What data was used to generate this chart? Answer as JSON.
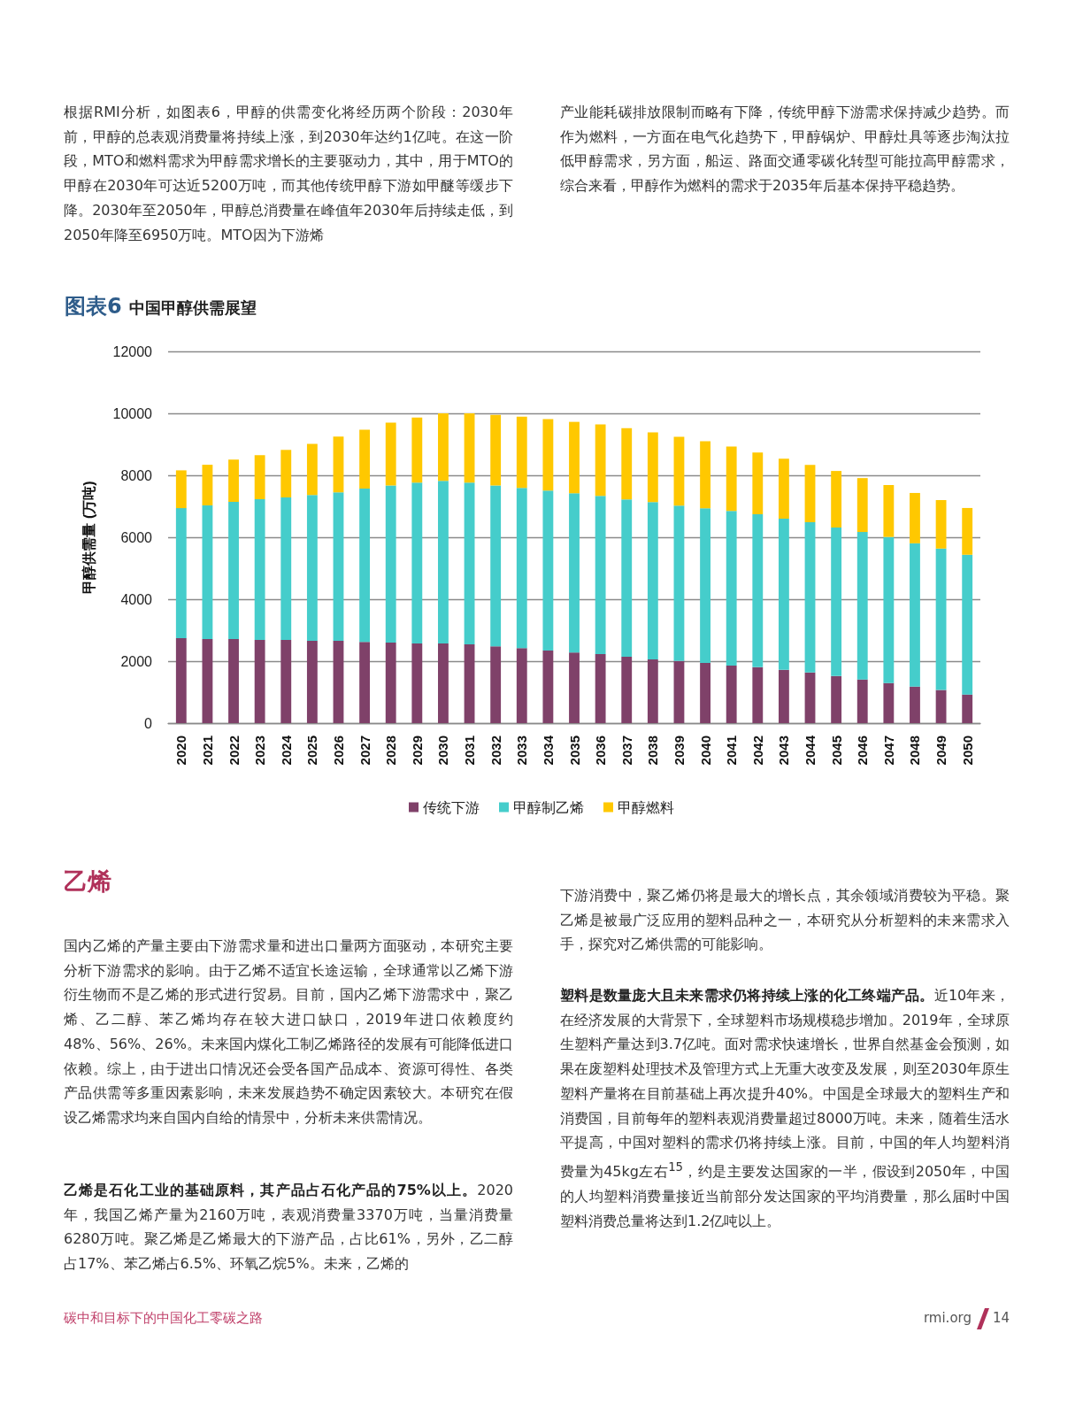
{
  "chart_data": {
    "type": "bar",
    "title": "图表6",
    "subtitle": "中国甲醇供需展望",
    "ylabel": "甲醇供需量 (万吨)",
    "categories": [
      "2020",
      "2021",
      "2022",
      "2023",
      "2024",
      "2025",
      "2026",
      "2027",
      "2028",
      "2029",
      "2030",
      "2031",
      "2032",
      "2033",
      "2034",
      "2035",
      "2036",
      "2037",
      "2038",
      "2039",
      "2040",
      "2041",
      "2042",
      "2043",
      "2044",
      "2045",
      "2046",
      "2047",
      "2048",
      "2049",
      "2050"
    ],
    "stacked": true,
    "ylim": [
      0,
      12000
    ],
    "yticks": [
      0,
      2000,
      4000,
      6000,
      8000,
      10000,
      12000
    ],
    "grid": "y",
    "legend": "bottom",
    "series": [
      {
        "name": "传统下游",
        "color": "#7f4169",
        "values": [
          2740,
          2715,
          2715,
          2685,
          2685,
          2655,
          2655,
          2625,
          2600,
          2570,
          2570,
          2540,
          2480,
          2420,
          2345,
          2280,
          2230,
          2145,
          2060,
          2005,
          1945,
          1860,
          1805,
          1720,
          1635,
          1520,
          1410,
          1295,
          1180,
          1070,
          925
        ]
      },
      {
        "name": "甲醇制乙烯",
        "color": "#45cdcb",
        "values": [
          4200,
          4315,
          4425,
          4545,
          4600,
          4710,
          4795,
          4945,
          5075,
          5195,
          5250,
          5225,
          5195,
          5170,
          5165,
          5140,
          5105,
          5075,
          5075,
          5015,
          4990,
          4990,
          4935,
          4880,
          4850,
          4795,
          4760,
          4715,
          4625,
          4565,
          4510
        ]
      },
      {
        "name": "甲醇燃料",
        "color": "#ffc800",
        "values": [
          1220,
          1310,
          1365,
          1420,
          1535,
          1650,
          1800,
          1900,
          2025,
          2100,
          2180,
          2235,
          2275,
          2300,
          2305,
          2305,
          2305,
          2305,
          2250,
          2225,
          2165,
          2080,
          1995,
          1935,
          1850,
          1825,
          1740,
          1675,
          1625,
          1565,
          1510
        ]
      }
    ],
    "annotations": [
      "根据RMI分析，如图表6，甲醇的供需变化将经历两个阶段：2030年前，甲醇的总表观消费量将持续上涨，到2030年达约1亿吨。在这一阶段，MTO和燃料需求为甲醇需求增长的主要驱动力，其中，用于MTO的甲醇在2030年可达近5200万吨，而其他传统甲醇下游如甲醚等缓步下降。2030年至2050年，甲醇总消费量在峰值年2030年后持续走低，到2050年降至6950万吨。MTO因为下游烯",
      "产业能耗碳排放限制而略有下降，传统甲醇下游需求保持减少趋势。而作为燃料，一方面在电气化趋势下，甲醇锅炉、甲醇灶具等逐步淘汰拉低甲醇需求，另方面，船运、路面交通零碳化转型可能拉高甲醇需求，综合来看，甲醇作为燃料的需求于2035年后基本保持平稳趋势。",
      "乙烯",
      "国内乙烯的产量主要由下游需求量和进出口量两方面驱动，本研究主要分析下游需求的影响。由于乙烯不适宜长途运输，全球通常以乙烯下游衍生物而不是乙烯的形式进行贸易。目前，国内乙烯下游需求中，聚乙烯、乙二醇、苯乙烯均存在较大进口缺口，2019年进口依赖度约48%、56%、26%。未来国内煤化工制乙烯路径的发展有可能降低进口依赖。综上，由于进出口情况还会受各国产品成本、资源可得性、各类产品供需等多重因素影响，未来发展趋势不确定因素较大。本研究在假设乙烯需求均来自国内自给的情景中，分析未来供需情况。",
      "乙烯是石化工业的基础原料，其产品占石化产品的75%以上。2020年，我国乙烯产量为2160万吨，表观消费量3370万吨，当量消费量6280万吨。聚乙烯是乙烯最大的下游产品，占比61%，另外，乙二醇占17%、苯乙烯占6.5%、环氧乙烷5%。未来，乙烯的",
      "下游消费中，聚乙烯仍将是最大的增长点，其余领域消费较为平稳。聚乙烯是被最广泛应用的塑料品种之一，本研究从分析塑料的未来需求入手，探究对乙烯供需的可能影响。",
      "塑料是数量庞大且未来需求仍将持续上涨的化工终端产品。近10年来，在经济发展的大背景下，全球塑料市场规模稳步增加。2019年，全球原生塑料产量达到3.7亿吨。面对需求快速增长，世界自然基金会预测，如果在废塑料处理技术及管理方式上无重大改变及发展，则至2030年原生塑料产量将在目前基础上再次提升40%。中国是全球最大的塑料生产和消费国，目前每年的塑料表观消费量超过8000万吨。未来，随着生活水平提高，中国对塑料的需求仍将持续上涨。目前，中国的年人均塑料消费量为45kg左右$^{15}$，约是主要发达国家的一半，假设到2050年，中国的人均塑料消费量接近当前部分发达国家的平均消费量，那么届时中国塑料消费总量将达到1.2亿吨以上。",
      "碳中和目标下的中国化工零碳之路",
      "rmi.org",
      "14"
    ]
  }
}
